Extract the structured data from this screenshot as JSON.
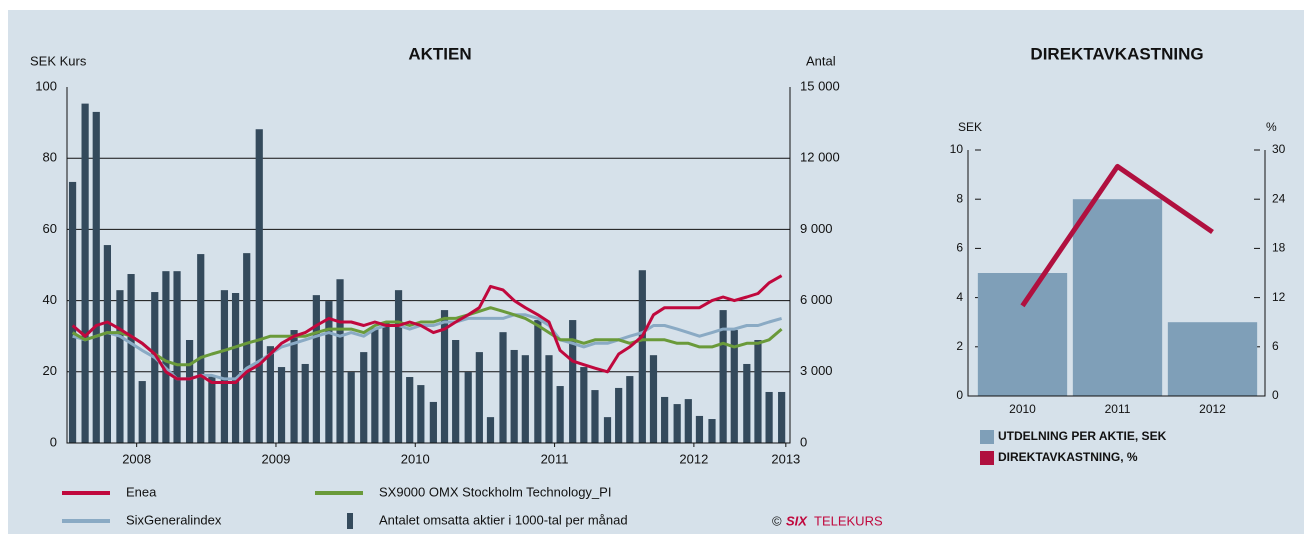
{
  "chart_data": [
    {
      "type": "combo",
      "title": "AKTIEN",
      "y_label": "SEK Kurs",
      "y2_label": "Antal",
      "xlim": [
        2008.0,
        2013.19
      ],
      "xticks": [
        {
          "value": 2008.5,
          "label": "2008"
        },
        {
          "value": 2009.5,
          "label": "2009"
        },
        {
          "value": 2010.5,
          "label": "2010"
        },
        {
          "value": 2011.5,
          "label": "2011"
        },
        {
          "value": 2012.5,
          "label": "2012"
        },
        {
          "value": 2013.16,
          "label": "2013"
        }
      ],
      "ylim": [
        0,
        100
      ],
      "yticks": [
        0,
        20,
        40,
        60,
        80,
        100
      ],
      "y2lim": [
        0,
        15000
      ],
      "y2ticks": [
        0,
        {
          "value": 3000,
          "label": "3 000"
        },
        {
          "value": 6000,
          "label": "6 000"
        },
        {
          "value": 9000,
          "label": "9 000"
        },
        {
          "value": 12000,
          "label": "12 000"
        },
        {
          "value": 15000,
          "label": "15 000"
        }
      ],
      "grid": true,
      "x": [
        2008.04,
        2008.13,
        2008.21,
        2008.29,
        2008.38,
        2008.46,
        2008.54,
        2008.63,
        2008.71,
        2008.79,
        2008.88,
        2008.96,
        2009.04,
        2009.13,
        2009.21,
        2009.29,
        2009.38,
        2009.46,
        2009.54,
        2009.63,
        2009.71,
        2009.79,
        2009.88,
        2009.96,
        2010.04,
        2010.13,
        2010.21,
        2010.29,
        2010.38,
        2010.46,
        2010.54,
        2010.63,
        2010.71,
        2010.79,
        2010.88,
        2010.96,
        2011.04,
        2011.13,
        2011.21,
        2011.29,
        2011.38,
        2011.46,
        2011.54,
        2011.63,
        2011.71,
        2011.79,
        2011.88,
        2011.96,
        2012.04,
        2012.13,
        2012.21,
        2012.29,
        2012.38,
        2012.46,
        2012.54,
        2012.63,
        2012.71,
        2012.79,
        2012.88,
        2012.96,
        2013.04,
        2013.13
      ],
      "series": [
        {
          "name": "Enea",
          "type": "line",
          "color": "#c0083d",
          "values": [
            33,
            30,
            33,
            34,
            32,
            30,
            28,
            25,
            20,
            18,
            18,
            19,
            17,
            17,
            17,
            20,
            22,
            25,
            28,
            30,
            31,
            33,
            35,
            34,
            34,
            33,
            34,
            33,
            33,
            34,
            33,
            31,
            32,
            34,
            36,
            38,
            44,
            43,
            40,
            38,
            36,
            34,
            26,
            23,
            22,
            21,
            20,
            25,
            27,
            30,
            36,
            38,
            38,
            38,
            38,
            40,
            41,
            40,
            41,
            42,
            45,
            47
          ]
        },
        {
          "name": "SX9000 OMX Stockholm Technology_PI",
          "type": "line",
          "color": "#6a9a3a",
          "values": [
            31,
            29,
            30,
            31,
            31,
            30,
            28,
            25,
            23,
            22,
            22,
            24,
            25,
            26,
            27,
            28,
            29,
            30,
            30,
            30,
            30,
            31,
            32,
            32,
            32,
            31,
            33,
            34,
            34,
            33,
            34,
            34,
            35,
            35,
            36,
            37,
            38,
            37,
            36,
            35,
            33,
            31,
            29,
            29,
            28,
            29,
            29,
            29,
            28,
            29,
            29,
            29,
            28,
            28,
            27,
            27,
            28,
            27,
            28,
            28,
            29,
            32
          ]
        },
        {
          "name": "SixGeneralindex",
          "type": "line",
          "color": "#8aaac4",
          "values": [
            30,
            29,
            30,
            31,
            30,
            28,
            26,
            24,
            21,
            18,
            18,
            19,
            19,
            18,
            18,
            21,
            23,
            25,
            27,
            28,
            29,
            30,
            31,
            30,
            31,
            30,
            32,
            33,
            33,
            32,
            33,
            33,
            34,
            34,
            35,
            35,
            35,
            35,
            36,
            36,
            35,
            33,
            29,
            28,
            27,
            28,
            28,
            29,
            30,
            31,
            33,
            33,
            32,
            31,
            30,
            31,
            32,
            32,
            33,
            33,
            34,
            35
          ]
        },
        {
          "name": "Antalet omsatta aktier i 1000-tal per månad",
          "type": "bar",
          "axis": "y2",
          "color": "#344a5c",
          "values": [
            11000,
            14300,
            13950,
            8340,
            6440,
            7120,
            2610,
            6360,
            7240,
            7240,
            4340,
            7960,
            2860,
            6440,
            6320,
            8000,
            13220,
            4080,
            3200,
            4760,
            3330,
            6230,
            5980,
            6900,
            2990,
            3830,
            4840,
            5090,
            6440,
            2780,
            2440,
            1730,
            5600,
            4340,
            2990,
            3830,
            1090,
            4670,
            3920,
            3700,
            5180,
            3700,
            2400,
            5180,
            3200,
            2230,
            1090,
            2320,
            2820,
            7280,
            3700,
            1940,
            1640,
            1850,
            1140,
            1010,
            5600,
            4760,
            3330,
            4340,
            2150,
            2150
          ]
        }
      ],
      "copyright": "©",
      "brand": "SIX",
      "brand_sub": "TELEKURS"
    },
    {
      "type": "combo",
      "title": "DIREKTAVKASTNING",
      "y_label": "SEK",
      "y2_label": "%",
      "categories": [
        "2010",
        "2011",
        "2012"
      ],
      "ylim": [
        0,
        10
      ],
      "yticks": [
        0,
        2,
        4,
        6,
        8,
        10
      ],
      "y2lim": [
        0,
        30
      ],
      "y2ticks": [
        0,
        6,
        12,
        18,
        24,
        30
      ],
      "series": [
        {
          "name": "UTDELNING PER AKTIE, SEK",
          "type": "bar",
          "color": "#7f9fb8",
          "values": [
            5,
            8,
            3
          ]
        },
        {
          "name": "DIREKTAVKASTNING, %",
          "type": "line",
          "axis": "y2",
          "color": "#b0103f",
          "values": [
            11,
            28,
            20
          ]
        }
      ]
    }
  ]
}
